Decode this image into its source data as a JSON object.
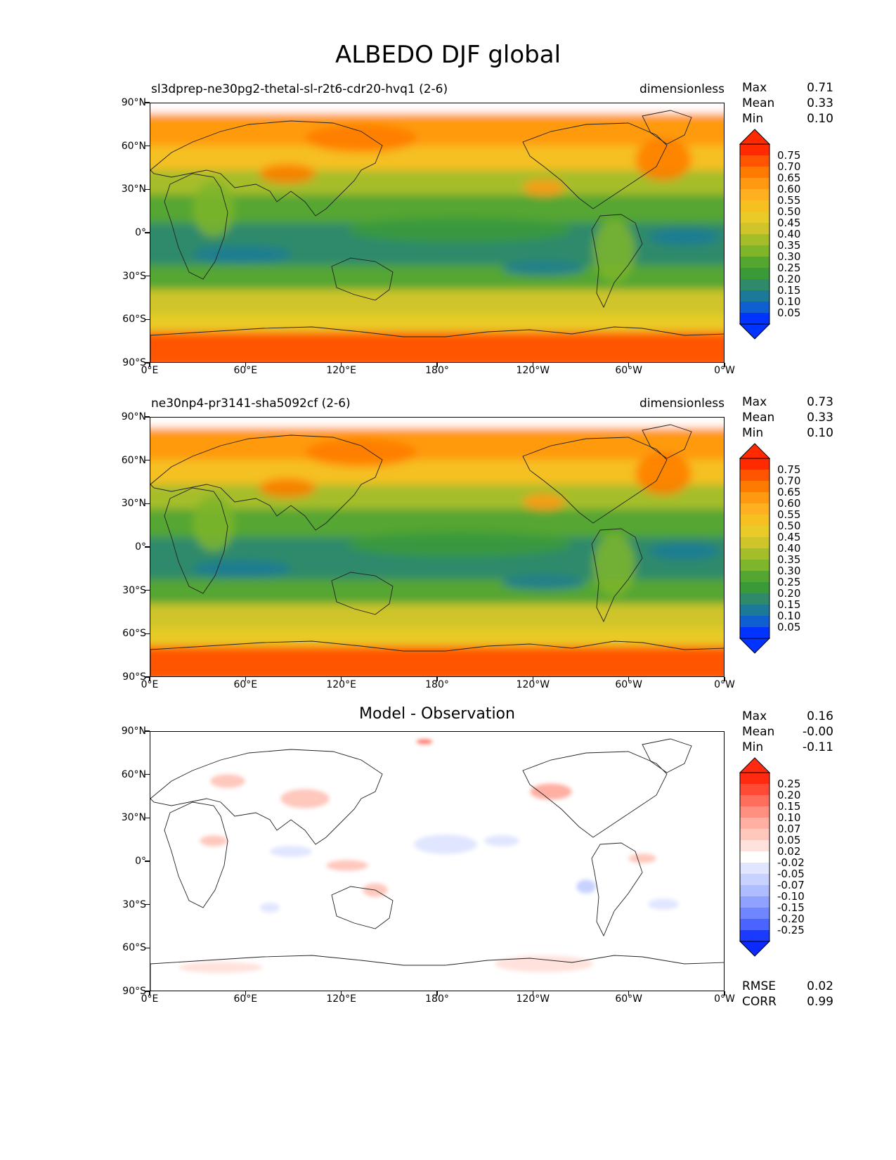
{
  "figure": {
    "title": "ALBEDO DJF global"
  },
  "axes": {
    "y_ticks": [
      "90°N",
      "60°N",
      "30°N",
      "0°",
      "30°S",
      "60°S",
      "90°S"
    ],
    "x_ticks": [
      "0°E",
      "60°E",
      "120°E",
      "180°",
      "120°W",
      "60°W",
      "0°W"
    ]
  },
  "panels": [
    {
      "id": "test",
      "model_label": "sl3dprep-ne30pg2-thetal-sl-r2t6-cdr20-hvq1 (2-6)",
      "units": "dimensionless",
      "center_title": "",
      "stats": [
        {
          "name": "Max",
          "value": "0.71"
        },
        {
          "name": "Mean",
          "value": "0.33"
        },
        {
          "name": "Min",
          "value": "0.10"
        }
      ],
      "colorbar": {
        "labels": [
          "0.75",
          "0.70",
          "0.65",
          "0.60",
          "0.55",
          "0.50",
          "0.45",
          "0.40",
          "0.35",
          "0.30",
          "0.25",
          "0.20",
          "0.15",
          "0.10",
          "0.05"
        ],
        "colors": [
          "#ff2a00",
          "#ff5500",
          "#ff7a00",
          "#ff9a10",
          "#ffb020",
          "#f5c020",
          "#e8cb28",
          "#cfc52a",
          "#a6bd2a",
          "#7eb52a",
          "#55a630",
          "#3a9a38",
          "#2f8a6a",
          "#1a7a98",
          "#0f5fd0",
          "#0033ff"
        ],
        "top_color": "#ff2a00",
        "bottom_color": "#0033ff"
      },
      "metrics": []
    },
    {
      "id": "reference",
      "model_label": "ne30np4-pr3141-sha5092cf (2-6)",
      "units": "dimensionless",
      "center_title": "",
      "stats": [
        {
          "name": "Max",
          "value": "0.73"
        },
        {
          "name": "Mean",
          "value": "0.33"
        },
        {
          "name": "Min",
          "value": "0.10"
        }
      ],
      "colorbar": {
        "labels": [
          "0.75",
          "0.70",
          "0.65",
          "0.60",
          "0.55",
          "0.50",
          "0.45",
          "0.40",
          "0.35",
          "0.30",
          "0.25",
          "0.20",
          "0.15",
          "0.10",
          "0.05"
        ],
        "colors": [
          "#ff2a00",
          "#ff5500",
          "#ff7a00",
          "#ff9a10",
          "#ffb020",
          "#f5c020",
          "#e8cb28",
          "#cfc52a",
          "#a6bd2a",
          "#7eb52a",
          "#55a630",
          "#3a9a38",
          "#2f8a6a",
          "#1a7a98",
          "#0f5fd0",
          "#0033ff"
        ],
        "top_color": "#ff2a00",
        "bottom_color": "#0033ff"
      },
      "metrics": []
    },
    {
      "id": "difference",
      "model_label": "",
      "units": "",
      "center_title": "Model - Observation",
      "stats": [
        {
          "name": "Max",
          "value": "0.16"
        },
        {
          "name": "Mean",
          "value": "-0.00"
        },
        {
          "name": "Min",
          "value": "-0.11"
        }
      ],
      "colorbar": {
        "labels": [
          "0.25",
          "0.20",
          "0.15",
          "0.10",
          "0.07",
          "0.05",
          "0.02",
          "-0.02",
          "-0.05",
          "-0.07",
          "-0.10",
          "-0.15",
          "-0.20",
          "-0.25"
        ],
        "colors": [
          "#ff2a10",
          "#ff4a35",
          "#ff6e5a",
          "#ff8f80",
          "#ffb0a2",
          "#ffc8bd",
          "#ffe2dc",
          "#ffffff",
          "#e0e6ff",
          "#c8d2ff",
          "#aebdff",
          "#8fa2ff",
          "#6f86ff",
          "#4a64ff",
          "#1a3aff"
        ],
        "top_color": "#ff2a10",
        "bottom_color": "#0a2aff"
      },
      "metrics": [
        {
          "name": "RMSE",
          "value": "0.02"
        },
        {
          "name": "CORR",
          "value": "0.99"
        }
      ]
    }
  ]
}
